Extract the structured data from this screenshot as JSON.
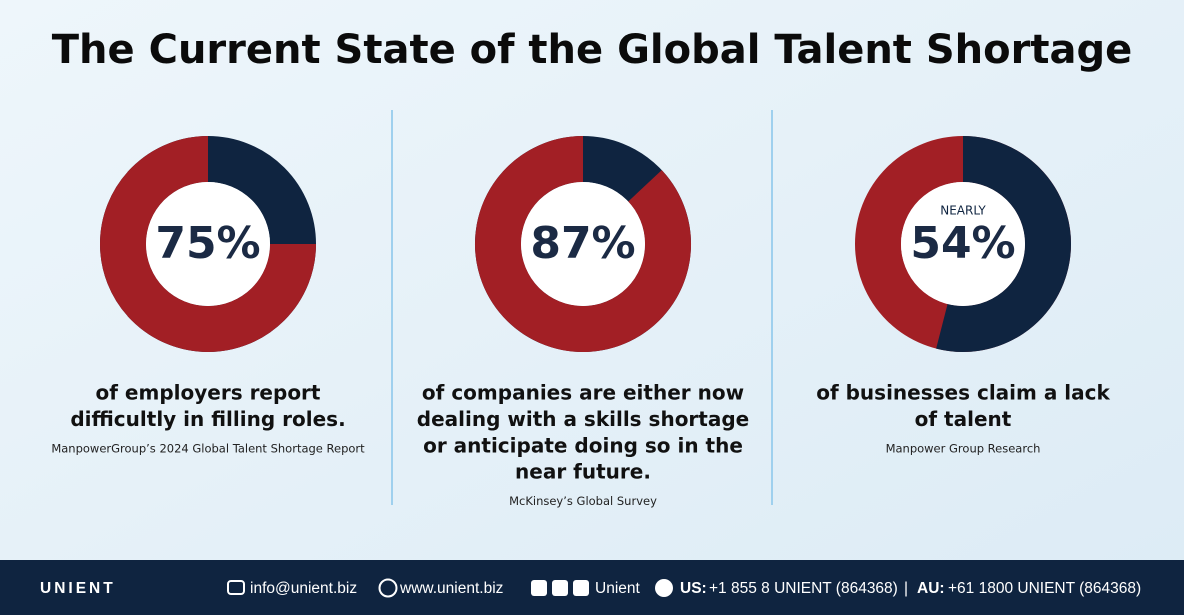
{
  "title": "The Current State of the Global Talent Shortage",
  "chart_data": [
    {
      "type": "donut",
      "values": [
        75
      ],
      "value_labels": [
        "75%"
      ],
      "color": "#a21f25",
      "track_color": "#0f2440",
      "direction": "counterclockwise",
      "caption": [
        "of employers report",
        "difficultly in filling roles."
      ],
      "source": "ManpowerGroup’s 2024 Global Talent Shortage Report"
    },
    {
      "type": "donut",
      "values": [
        87
      ],
      "value_labels": [
        "87%"
      ],
      "color": "#a21f25",
      "track_color": "#0f2440",
      "direction": "counterclockwise",
      "caption": [
        "of companies are either now",
        "dealing with a skills shortage",
        "or anticipate doing so in the",
        "near future."
      ],
      "source": "McKinsey’s Global Survey"
    },
    {
      "type": "donut",
      "label": "NEARLY",
      "values": [
        54
      ],
      "value_labels": [
        "54%"
      ],
      "color": "#0f2440",
      "track_color": "#a21f25",
      "direction": "clockwise",
      "caption": [
        "of businesses claim a lack",
        "of talent"
      ],
      "source": "Manpower Group Research"
    }
  ],
  "footer": {
    "logo": "UNIENT",
    "email": "info@unient.biz",
    "website": "www.unient.biz",
    "social": "Unient",
    "us_label": "US:",
    "us_phone": "+1 855 8 UNIENT (864368)",
    "separator": "|",
    "au_label": "AU:",
    "au_phone": "+61 1800 UNIENT (864368)"
  }
}
